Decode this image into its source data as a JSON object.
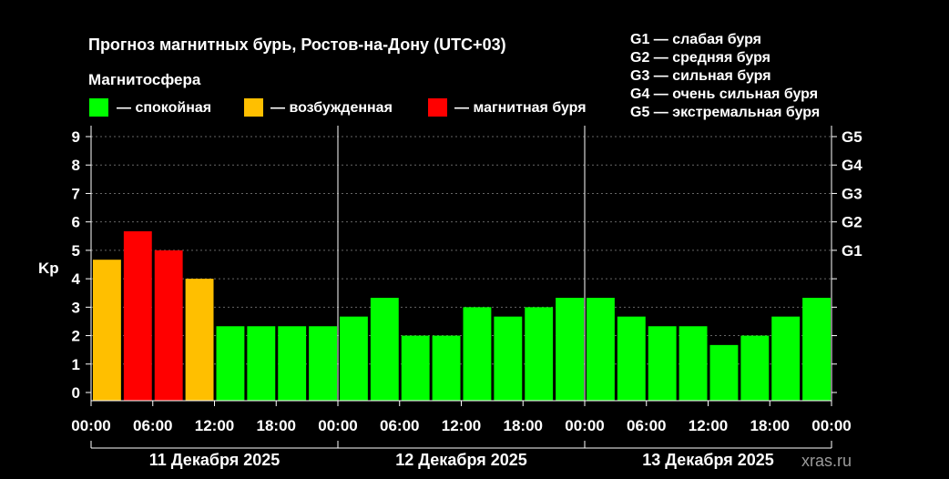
{
  "title": "Прогноз магнитных бурь, Ростов-на-Дону (UTC+03)",
  "magnetosphere_label": "Магнитосфера",
  "status_legend": [
    {
      "label": "— спокойная",
      "color": "#00ff00"
    },
    {
      "label": "— возбужденная",
      "color": "#ffbf00"
    },
    {
      "label": "— магнитная буря",
      "color": "#ff0000"
    }
  ],
  "g_legend": [
    "G1 — слабая буря",
    "G2 — средняя буря",
    "G3 — сильная буря",
    "G4 — очень сильная буря",
    "G5 — экстремальная буря"
  ],
  "watermark": "xras.ru",
  "colors": {
    "quiet": "#00ff00",
    "active": "#ffbf00",
    "storm": "#ff0000",
    "grid": "#666666",
    "axis": "#ffffff"
  },
  "chart_data": {
    "type": "bar",
    "ylabel": "Kp",
    "ylim": [
      0,
      9
    ],
    "yticks": [
      "0",
      "1",
      "2",
      "3",
      "4",
      "5",
      "6",
      "7",
      "8",
      "9"
    ],
    "right_axis_labels": [
      {
        "label": "G1",
        "kp": 5
      },
      {
        "label": "G2",
        "kp": 6
      },
      {
        "label": "G3",
        "kp": 7
      },
      {
        "label": "G4",
        "kp": 8
      },
      {
        "label": "G5",
        "kp": 9
      }
    ],
    "xticks": [
      "00:00",
      "06:00",
      "12:00",
      "18:00",
      "00:00",
      "06:00",
      "12:00",
      "18:00",
      "00:00",
      "06:00",
      "12:00",
      "18:00",
      "00:00"
    ],
    "days": [
      "11 Декабря 2025",
      "12 Декабря 2025",
      "13 Декабря 2025"
    ],
    "grid": true,
    "values": [
      4.67,
      5.67,
      5.0,
      4.0,
      2.33,
      2.33,
      2.33,
      2.33,
      2.67,
      3.33,
      2.0,
      2.0,
      3.0,
      2.67,
      3.0,
      3.33,
      3.33,
      2.67,
      2.33,
      2.33,
      1.67,
      2.0,
      2.67,
      3.33
    ],
    "status": [
      "active",
      "storm",
      "storm",
      "active",
      "quiet",
      "quiet",
      "quiet",
      "quiet",
      "quiet",
      "quiet",
      "quiet",
      "quiet",
      "quiet",
      "quiet",
      "quiet",
      "quiet",
      "quiet",
      "quiet",
      "quiet",
      "quiet",
      "quiet",
      "quiet",
      "quiet",
      "quiet"
    ]
  }
}
